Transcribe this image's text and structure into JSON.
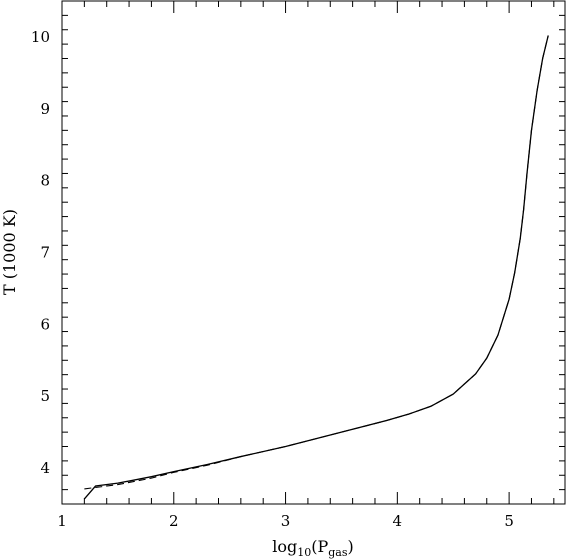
{
  "chart_data": {
    "type": "line",
    "title": "",
    "xlabel": {
      "main": "log",
      "sub": "10",
      "open": "(P",
      "psub": "gas",
      "close": ")"
    },
    "ylabel": "T (1000 K)",
    "xlim": [
      1.0,
      5.5
    ],
    "ylim": [
      3.5,
      10.5
    ],
    "xticks_major": [
      1,
      2,
      3,
      4,
      5
    ],
    "yticks_major": [
      4,
      5,
      6,
      7,
      8,
      9,
      10
    ],
    "xticks_minor_step": 0.2,
    "yticks_minor_step": 0.2,
    "grid": false,
    "legend": "none",
    "series": [
      {
        "style": "solid",
        "x": [
          1.2,
          1.3,
          1.5,
          1.8,
          2.0,
          2.3,
          2.6,
          3.0,
          3.3,
          3.6,
          3.9,
          4.1,
          4.3,
          4.5,
          4.7,
          4.8,
          4.9,
          5.0,
          5.05,
          5.1,
          5.13,
          5.16,
          5.2,
          5.25,
          5.3,
          5.35
        ],
        "y": [
          3.57,
          3.75,
          3.79,
          3.88,
          3.95,
          4.05,
          4.16,
          4.3,
          4.42,
          4.54,
          4.66,
          4.75,
          4.86,
          5.03,
          5.31,
          5.53,
          5.85,
          6.35,
          6.72,
          7.2,
          7.6,
          8.1,
          8.7,
          9.25,
          9.7,
          10.02
        ]
      },
      {
        "style": "dashed",
        "x": [
          1.2,
          1.3,
          1.5,
          1.8,
          2.0,
          2.3,
          2.6,
          3.0,
          3.3,
          3.6,
          3.9,
          4.1,
          4.3,
          4.5,
          4.7,
          4.8,
          4.9,
          5.0,
          5.05,
          5.1,
          5.13,
          5.16,
          5.2,
          5.25,
          5.3,
          5.35
        ],
        "y": [
          3.71,
          3.73,
          3.77,
          3.86,
          3.94,
          4.04,
          4.16,
          4.3,
          4.42,
          4.54,
          4.66,
          4.75,
          4.86,
          5.03,
          5.31,
          5.53,
          5.85,
          6.35,
          6.72,
          7.2,
          7.6,
          8.1,
          8.7,
          9.25,
          9.7,
          10.02
        ]
      }
    ]
  }
}
